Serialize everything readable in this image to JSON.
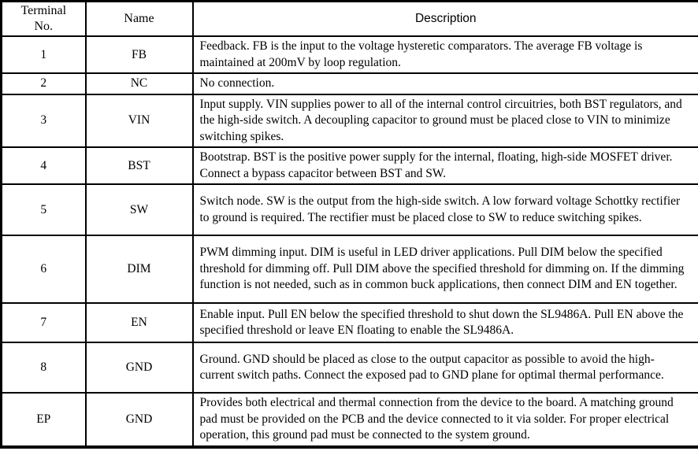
{
  "table": {
    "headers": {
      "terminal_line1": "Terminal",
      "terminal_line2": "No.",
      "name": "Name",
      "description": "Description"
    },
    "rows": [
      {
        "terminal": "1",
        "name": "FB",
        "description": "Feedback. FB is the input to the voltage hysteretic comparators. The average FB voltage is maintained at 200mV by loop regulation."
      },
      {
        "terminal": "2",
        "name": "NC",
        "description": "No connection."
      },
      {
        "terminal": "3",
        "name": "VIN",
        "description": "Input supply. VIN supplies power to all of the internal control circuitries, both BST regulators, and the high-side switch. A decoupling capacitor to ground must be placed close to VIN to minimize switching spikes."
      },
      {
        "terminal": "4",
        "name": "BST",
        "description": "Bootstrap. BST is the positive power supply for the internal, floating, high-side MOSFET driver. Connect a bypass capacitor between BST and SW."
      },
      {
        "terminal": "5",
        "name": "SW",
        "description": "Switch node. SW is the output from the high-side switch. A low forward voltage Schottky rectifier to ground is required. The rectifier must be placed close to SW to reduce switching spikes."
      },
      {
        "terminal": "6",
        "name": "DIM",
        "description": "PWM dimming input. DIM is useful in LED driver applications. Pull DIM below the specified threshold for dimming off. Pull DIM above the specified threshold for dimming on. If the dimming function is not needed, such as in common buck applications, then connect DIM and EN together."
      },
      {
        "terminal": "7",
        "name": "EN",
        "description": "Enable input. Pull EN below the specified threshold to shut down the SL9486A. Pull EN above the specified threshold or leave EN floating to enable the SL9486A."
      },
      {
        "terminal": "8",
        "name": "GND",
        "description": "Ground. GND should be placed as close to the output capacitor as possible to avoid the high-current switch paths. Connect the exposed pad to GND plane for optimal thermal performance."
      },
      {
        "terminal": "EP",
        "name": "GND",
        "description": "Provides both electrical and thermal connection from the device to the board. A matching ground pad must be provided on the PCB and the device connected to it via solder. For proper electrical operation, this ground pad must be connected to the system ground."
      }
    ]
  },
  "colors": {
    "border": "#000000",
    "text": "#000000",
    "background": "#ffffff"
  }
}
